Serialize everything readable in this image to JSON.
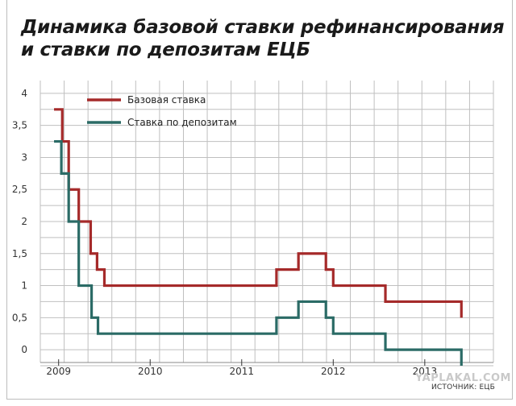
{
  "title_lines": [
    "Динамика базовой ставки рефинансирования",
    "и ставки по депозитам ЕЦБ"
  ],
  "source": "ИСТОЧНИК: ЕЦБ",
  "watermark": "YAPLAKAL.COM",
  "colors": {
    "base": "#a52a2a",
    "deposit": "#2b6b66",
    "grid": "#bfbfbf",
    "axis": "#333333"
  },
  "chart_data": {
    "type": "line",
    "x_axis": {
      "range": [
        2008.8,
        2013.75
      ],
      "tick_labels": [
        "2009",
        "2010",
        "2011",
        "2012",
        "2013"
      ],
      "tick_values": [
        2009,
        2010,
        2011,
        2012,
        2013
      ]
    },
    "y_axis": {
      "range": [
        -0.2,
        4.2
      ],
      "tick_labels": [
        "0",
        "0,5",
        "1",
        "1,5",
        "2",
        "2,5",
        "3",
        "3,5",
        "4"
      ],
      "tick_values": [
        0,
        0.5,
        1,
        1.5,
        2,
        2.5,
        3,
        3.5,
        4
      ]
    },
    "grid": true,
    "legend_placement": "top-left",
    "series": [
      {
        "name": "Базовая ставка",
        "color_key": "base",
        "step": true,
        "points": [
          [
            2008.95,
            3.75
          ],
          [
            2009.04,
            3.25
          ],
          [
            2009.11,
            2.5
          ],
          [
            2009.22,
            2.0
          ],
          [
            2009.35,
            1.5
          ],
          [
            2009.42,
            1.25
          ],
          [
            2009.5,
            1.0
          ],
          [
            2011.38,
            1.25
          ],
          [
            2011.62,
            1.5
          ],
          [
            2011.92,
            1.25
          ],
          [
            2012.0,
            1.0
          ],
          [
            2012.57,
            0.75
          ],
          [
            2013.4,
            0.5
          ]
        ]
      },
      {
        "name": "Ставка по депозитам",
        "color_key": "deposit",
        "step": true,
        "points": [
          [
            2008.95,
            3.25
          ],
          [
            2009.03,
            2.75
          ],
          [
            2009.11,
            2.0
          ],
          [
            2009.22,
            1.0
          ],
          [
            2009.36,
            0.5
          ],
          [
            2009.43,
            0.25
          ],
          [
            2011.38,
            0.5
          ],
          [
            2011.62,
            0.75
          ],
          [
            2011.92,
            0.5
          ],
          [
            2012.0,
            0.25
          ],
          [
            2012.57,
            0.0
          ],
          [
            2013.4,
            -0.25
          ]
        ]
      }
    ]
  }
}
